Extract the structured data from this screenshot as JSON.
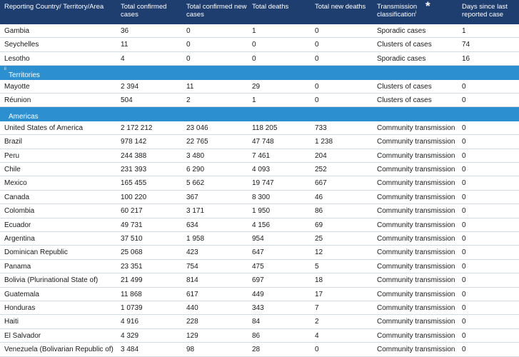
{
  "table": {
    "columns": [
      {
        "label": "Reporting Country/ Territory/Area"
      },
      {
        "label": "Total confirmed cases"
      },
      {
        "label": "Total confirmed new cases"
      },
      {
        "label": "Total deaths"
      },
      {
        "label": "Total new deaths"
      },
      {
        "label": "Transmission classification",
        "note": "i",
        "mark": "*"
      },
      {
        "label": "Days since last reported case"
      }
    ],
    "sections": [
      {
        "rows": [
          [
            "Gambia",
            "36",
            "0",
            "1",
            "0",
            "Sporadic cases",
            "1"
          ],
          [
            "Seychelles",
            "11",
            "0",
            "0",
            "0",
            "Clusters of cases",
            "74"
          ],
          [
            "Lesotho",
            "4",
            "0",
            "0",
            "0",
            "Sporadic cases",
            "16"
          ]
        ]
      },
      {
        "title": "Territories",
        "note": "ii",
        "rows": [
          [
            "Mayotte",
            "2 394",
            "11",
            "29",
            "0",
            "Clusters of cases",
            "0"
          ],
          [
            "Réunion",
            "504",
            "2",
            "1",
            "0",
            "Clusters of cases",
            "0"
          ]
        ]
      },
      {
        "title": "Americas",
        "rows": [
          [
            "United States of America",
            "2 172 212",
            "23 046",
            "118 205",
            "733",
            "Community transmission",
            "0"
          ],
          [
            "Brazil",
            "978 142",
            "22 765",
            "47 748",
            "1 238",
            "Community transmission",
            "0"
          ],
          [
            "Peru",
            "244 388",
            "3 480",
            "7 461",
            "204",
            "Community transmission",
            "0"
          ],
          [
            "Chile",
            "231 393",
            "6 290",
            "4 093",
            "252",
            "Community transmission",
            "0"
          ],
          [
            "Mexico",
            "165 455",
            "5 662",
            "19 747",
            "667",
            "Community transmission",
            "0"
          ],
          [
            "Canada",
            "100 220",
            "367",
            "8 300",
            "46",
            "Community transmission",
            "0"
          ],
          [
            "Colombia",
            "60 217",
            "3 171",
            "1 950",
            "86",
            "Community transmission",
            "0"
          ],
          [
            "Ecuador",
            "49 731",
            "634",
            "4 156",
            "69",
            "Community transmission",
            "0"
          ],
          [
            "Argentina",
            "37 510",
            "1 958",
            "954",
            "25",
            "Community transmission",
            "0"
          ],
          [
            "Dominican Republic",
            "25 068",
            "423",
            "647",
            "12",
            "Community transmission",
            "0"
          ],
          [
            "Panama",
            "23 351",
            "754",
            "475",
            "5",
            "Community transmission",
            "0"
          ],
          [
            "Bolivia (Plurinational State of)",
            "21 499",
            "814",
            "697",
            "18",
            "Community transmission",
            "0"
          ],
          [
            "Guatemala",
            "11 868",
            "617",
            "449",
            "17",
            "Community transmission",
            "0"
          ],
          [
            "Honduras",
            "1 0739",
            "440",
            "343",
            "7",
            "Community transmission",
            "0"
          ],
          [
            "Haiti",
            "4 916",
            "228",
            "84",
            "2",
            "Community transmission",
            "0"
          ],
          [
            "El Salvador",
            "4 329",
            "129",
            "86",
            "4",
            "Community transmission",
            "0"
          ],
          [
            "Venezuela (Bolivarian Republic of)",
            "3 484",
            "98",
            "28",
            "0",
            "Community transmission",
            "0"
          ]
        ]
      }
    ]
  }
}
